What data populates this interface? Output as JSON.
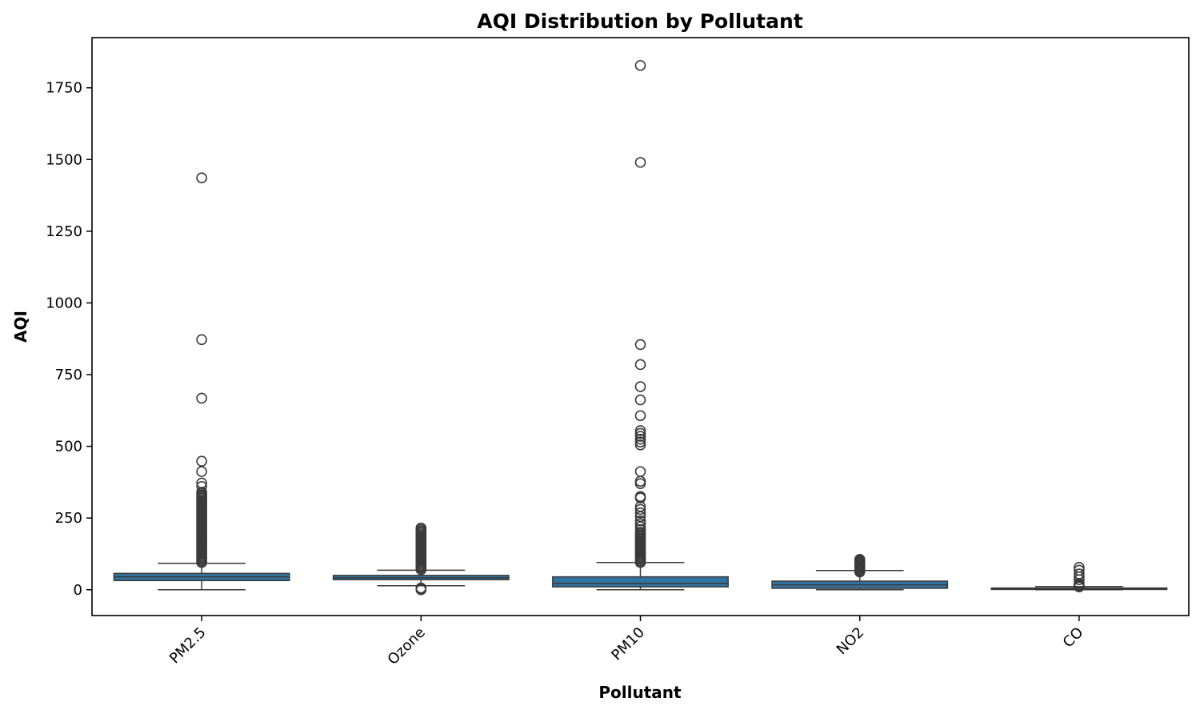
{
  "chart_data": {
    "type": "box",
    "title": "AQI Distribution by Pollutant",
    "xlabel": "Pollutant",
    "ylabel": "AQI",
    "ylim": [
      -90,
      1925
    ],
    "yticks": [
      0,
      250,
      500,
      750,
      1000,
      1250,
      1500,
      1750
    ],
    "ytick_labels": [
      "0",
      "250",
      "500",
      "750",
      "1000",
      "1250",
      "1500",
      "1750"
    ],
    "grid": false,
    "box_color": "#3274a1",
    "edge_color": "#3a3a3a",
    "categories": [
      "PM2.5",
      "Ozone",
      "PM10",
      "NO2",
      "CO"
    ],
    "boxes": [
      {
        "name": "PM2.5",
        "whisker_low": 0,
        "q1": 32,
        "median": 45,
        "q3": 57,
        "whisker_high": 92,
        "outliers": [
          95,
          100,
          105,
          110,
          115,
          120,
          125,
          130,
          135,
          140,
          145,
          150,
          155,
          160,
          165,
          170,
          175,
          180,
          185,
          190,
          195,
          200,
          205,
          210,
          215,
          220,
          225,
          230,
          235,
          240,
          245,
          250,
          255,
          260,
          265,
          270,
          275,
          280,
          285,
          290,
          295,
          300,
          305,
          310,
          315,
          320,
          325,
          330,
          335,
          340,
          360,
          372,
          412,
          448,
          668,
          872,
          1436
        ]
      },
      {
        "name": "Ozone",
        "whisker_low": 14,
        "q1": 35,
        "median": 42,
        "q3": 50,
        "whisker_high": 68,
        "outliers": [
          0,
          3,
          6,
          70,
          75,
          80,
          85,
          90,
          95,
          100,
          105,
          110,
          115,
          120,
          125,
          130,
          135,
          140,
          145,
          150,
          155,
          160,
          165,
          170,
          175,
          180,
          185,
          190,
          195,
          200,
          205,
          210,
          215
        ]
      },
      {
        "name": "PM10",
        "whisker_low": 0,
        "q1": 10,
        "median": 22,
        "q3": 45,
        "whisker_high": 95,
        "outliers": [
          95,
          100,
          105,
          110,
          115,
          120,
          125,
          130,
          135,
          140,
          145,
          150,
          155,
          160,
          165,
          170,
          175,
          180,
          185,
          190,
          195,
          200,
          210,
          220,
          230,
          240,
          255,
          268,
          280,
          290,
          320,
          325,
          370,
          378,
          412,
          505,
          515,
          525,
          535,
          545,
          555,
          607,
          662,
          708,
          785,
          855,
          1490,
          1828
        ]
      },
      {
        "name": "NO2",
        "whisker_low": 0,
        "q1": 5,
        "median": 17,
        "q3": 30,
        "whisker_high": 67,
        "outliers": [
          62,
          66,
          70,
          74,
          78,
          82,
          86,
          90,
          94,
          98,
          102,
          106
        ]
      },
      {
        "name": "CO",
        "whisker_low": 0,
        "q1": 1,
        "median": 3,
        "q3": 6,
        "whisker_high": 11,
        "outliers": [
          10,
          14,
          18,
          22,
          35,
          45,
          55,
          68,
          78
        ]
      }
    ]
  }
}
